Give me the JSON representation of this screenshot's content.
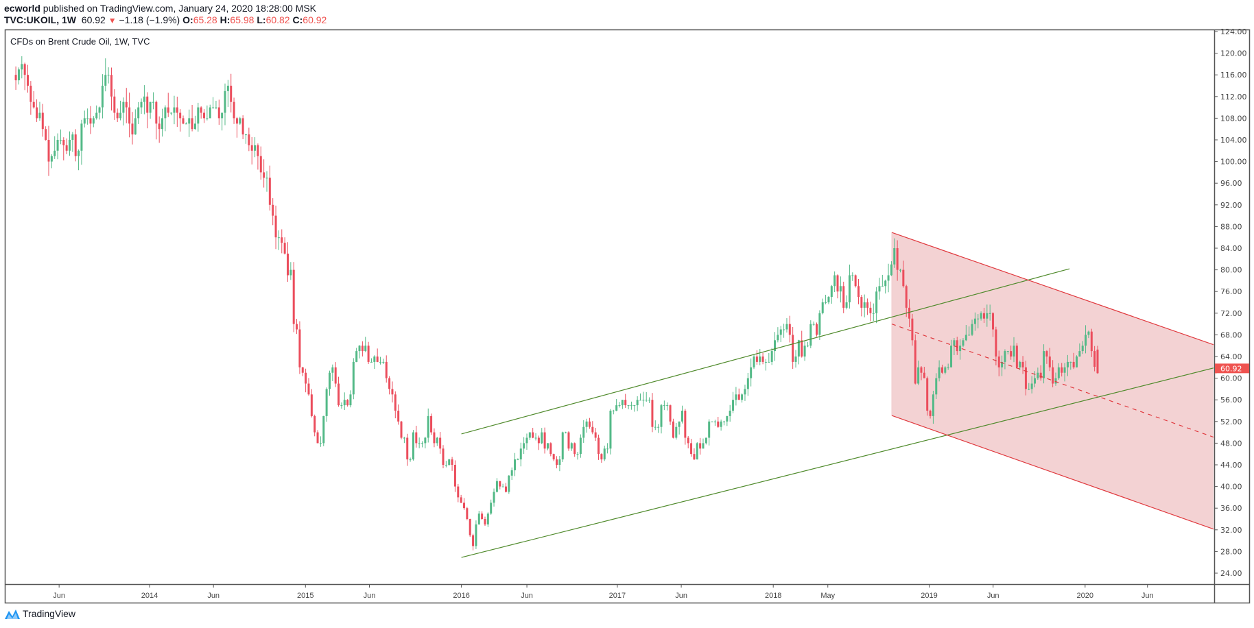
{
  "header": {
    "author": "ecworld",
    "published": "published on TradingView.com, January 24, 2020 18:28:00 MSK",
    "symbol": "TVC:UKOIL, 1W",
    "last": "60.92",
    "change": "−1.18 (−1.9%)",
    "o_label": "O:",
    "o": "65.28",
    "h_label": "H:",
    "h": "65.98",
    "l_label": "L:",
    "l": "60.82",
    "c_label": "C:",
    "c": "60.92"
  },
  "chart_title": "CFDs on Brent Crude Oil, 1W, TVC",
  "logo": "TradingView",
  "colors": {
    "up": "#53b987",
    "down": "#eb4d5c",
    "trend": "#4f8a2b",
    "channel": "#e0393e",
    "channel_fill": "#f2d0d1",
    "price_label": "#ef5350"
  },
  "chart_data": {
    "type": "candlestick",
    "title": "CFDs on Brent Crude Oil, 1W, TVC",
    "ylim": [
      24,
      124
    ],
    "yticks": [
      "124.00",
      "120.00",
      "116.00",
      "112.00",
      "108.00",
      "104.00",
      "100.00",
      "96.00",
      "92.00",
      "88.00",
      "84.00",
      "80.00",
      "76.00",
      "72.00",
      "68.00",
      "64.00",
      "60.00",
      "56.00",
      "52.00",
      "48.00",
      "44.00",
      "40.00",
      "36.00",
      "32.00",
      "28.00",
      "24.00"
    ],
    "xticks": [
      {
        "label": "Jun",
        "t": 2013.42
      },
      {
        "label": "2014",
        "t": 2014.0
      },
      {
        "label": "Jun",
        "t": 2014.41
      },
      {
        "label": "2015",
        "t": 2015.0
      },
      {
        "label": "Jun",
        "t": 2015.41
      },
      {
        "label": "2016",
        "t": 2016.0
      },
      {
        "label": "Jun",
        "t": 2016.42
      },
      {
        "label": "2017",
        "t": 2017.0
      },
      {
        "label": "Jun",
        "t": 2017.41
      },
      {
        "label": "2018",
        "t": 2018.0
      },
      {
        "label": "May",
        "t": 2018.35
      },
      {
        "label": "2019",
        "t": 2019.0
      },
      {
        "label": "Jun",
        "t": 2019.41
      },
      {
        "label": "2020",
        "t": 2020.0
      },
      {
        "label": "Jun",
        "t": 2020.4
      }
    ],
    "last_week_time": 2020.08,
    "last_price": "60.92",
    "last_candle": {
      "o": 65.28,
      "h": 65.98,
      "l": 60.82,
      "c": 60.92
    },
    "closes_by_year": {
      "2013": [
        115,
        117,
        118,
        116,
        114,
        111,
        110,
        108,
        109,
        106,
        104,
        100,
        101,
        102,
        104,
        104,
        103,
        102,
        104,
        105,
        101,
        102,
        107,
        108,
        108,
        107,
        108,
        109,
        110,
        114,
        116,
        116,
        112,
        109,
        108,
        109,
        111,
        110,
        107,
        105,
        108,
        110,
        111,
        112,
        109,
        111,
        111
      ],
      "2014": [
        107,
        106,
        108,
        110,
        109,
        109,
        110,
        109,
        108,
        107,
        107,
        108,
        106,
        107,
        110,
        109,
        108,
        108,
        110,
        110,
        110,
        108,
        109,
        113,
        114,
        111,
        108,
        107,
        108,
        105,
        105,
        103,
        102,
        103,
        101,
        98,
        97,
        97,
        92,
        90,
        86,
        86,
        85,
        83,
        79,
        80,
        70,
        69,
        62,
        61,
        59,
        57
      ],
      "2015": [
        53,
        50,
        48,
        48,
        53,
        58,
        61,
        62,
        59,
        55,
        55,
        56,
        55,
        57,
        63,
        65,
        66,
        65,
        66,
        63,
        63,
        64,
        63,
        63,
        63,
        60,
        58,
        57,
        54,
        52,
        49,
        49,
        45,
        45,
        50,
        48,
        48,
        48,
        49,
        53,
        50,
        48,
        49,
        47,
        44,
        44,
        45,
        44,
        40,
        38,
        37,
        36
      ],
      "2016": [
        34,
        31,
        29,
        33,
        35,
        34,
        33,
        35,
        37,
        39,
        41,
        40,
        40,
        39,
        42,
        43,
        45,
        45,
        47,
        48,
        49,
        50,
        49,
        49,
        48,
        50,
        47,
        48,
        46,
        45,
        44,
        45,
        50,
        50,
        47,
        48,
        46,
        46,
        49,
        51,
        52,
        51,
        50,
        49,
        46,
        45,
        47,
        47,
        54,
        54,
        55,
        55
      ],
      "2017": [
        56,
        55,
        55,
        55,
        55,
        56,
        56,
        56,
        56,
        56,
        51,
        51,
        51,
        55,
        55,
        55,
        52,
        49,
        51,
        52,
        54,
        49,
        48,
        46,
        45,
        48,
        47,
        48,
        49,
        52,
        52,
        52,
        51,
        52,
        52,
        53,
        54,
        56,
        57,
        56,
        57,
        58,
        60,
        62,
        64,
        63,
        64,
        63,
        63,
        63,
        65,
        67
      ],
      "2018": [
        68,
        69,
        69,
        70,
        68,
        63,
        64,
        67,
        64,
        66,
        66,
        70,
        70,
        68,
        72,
        74,
        74,
        75,
        77,
        79,
        76,
        77,
        73,
        74,
        79,
        79,
        77,
        75,
        73,
        74,
        73,
        72,
        72,
        76,
        77,
        77,
        78,
        79,
        81,
        84,
        80,
        80,
        77,
        73,
        71,
        67,
        59,
        62,
        61,
        60,
        54,
        53
      ],
      "2019": [
        57,
        60,
        62,
        61,
        62,
        62,
        66,
        67,
        65,
        66,
        67,
        68,
        68,
        70,
        71,
        71,
        72,
        71,
        72,
        72,
        69,
        64,
        62,
        63,
        65,
        65,
        64,
        66,
        62,
        63,
        62,
        58,
        58,
        59,
        60,
        61,
        60,
        65,
        64,
        62,
        59,
        60,
        62,
        61,
        62,
        63,
        63,
        62,
        64,
        65,
        66,
        68
      ],
      "2020": [
        68.6,
        65.0,
        62.1,
        60.92
      ]
    },
    "drawings": [
      {
        "name": "upper-trendline",
        "kind": "trend",
        "from": [
          2016.0,
          49.7
        ],
        "to": [
          2019.9,
          80.2
        ]
      },
      {
        "name": "lower-trendline",
        "kind": "trend",
        "from": [
          2016.0,
          26.9
        ],
        "to": [
          2021.24,
          64.9
        ]
      },
      {
        "name": "channel-top",
        "kind": "channel",
        "from": [
          2018.76,
          86.9
        ],
        "to": [
          2021.24,
          62.0
        ]
      },
      {
        "name": "channel-mid",
        "kind": "channel-mid",
        "from": [
          2018.76,
          70.0
        ],
        "to": [
          2021.24,
          44.9
        ]
      },
      {
        "name": "channel-bottom",
        "kind": "channel",
        "from": [
          2018.76,
          53.1
        ],
        "to": [
          2021.24,
          27.9
        ]
      }
    ]
  }
}
